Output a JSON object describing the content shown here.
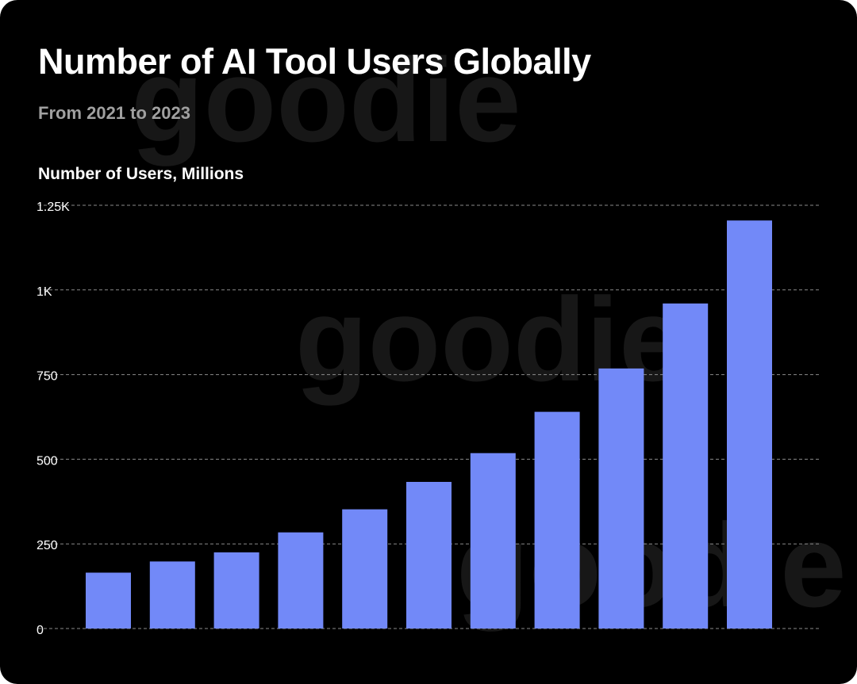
{
  "chart_data": {
    "type": "bar",
    "title": "Number of AI Tool Users Globally",
    "subtitle": "From 2021 to 2023",
    "ylabel": "Number of Users, Millions",
    "xlabel": "",
    "values": [
      165,
      198,
      225,
      284,
      352,
      433,
      518,
      640,
      768,
      960,
      1205
    ],
    "ylim": [
      0,
      1250
    ],
    "yticks": [
      {
        "value": 0,
        "label": "0"
      },
      {
        "value": 250,
        "label": "250"
      },
      {
        "value": 500,
        "label": "500"
      },
      {
        "value": 750,
        "label": "750"
      },
      {
        "value": 1000,
        "label": "1K"
      },
      {
        "value": 1250,
        "label": "1.25K"
      }
    ],
    "grid": true,
    "bar_color": "#7289f8",
    "background": "#000000"
  },
  "watermark": {
    "text": "goodie"
  }
}
